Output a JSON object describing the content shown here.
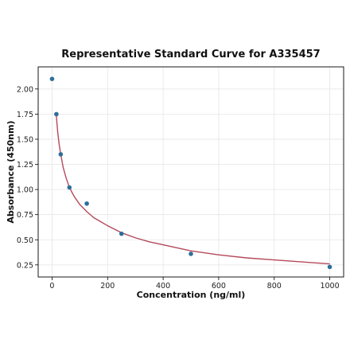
{
  "chart_data": {
    "type": "scatter",
    "title": "Representative Standard Curve for A335457",
    "xlabel": "Concentration (ng/ml)",
    "ylabel": "Absorbance (450nm)",
    "xlim": [
      -50,
      1050
    ],
    "ylim": [
      0.13,
      2.22
    ],
    "x_ticks": [
      0,
      200,
      400,
      600,
      800,
      1000
    ],
    "x_tick_labels": [
      "0",
      "200",
      "400",
      "600",
      "800",
      "1000"
    ],
    "y_ticks": [
      0.25,
      0.5,
      0.75,
      1.0,
      1.25,
      1.5,
      1.75,
      2.0
    ],
    "y_tick_labels": [
      "0.25",
      "0.50",
      "0.75",
      "1.00",
      "1.25",
      "1.50",
      "1.75",
      "2.00"
    ],
    "grid": true,
    "points": {
      "x": [
        0,
        15.6,
        31.25,
        62.5,
        125,
        250,
        500,
        1000
      ],
      "y": [
        2.1,
        1.75,
        1.35,
        1.02,
        0.86,
        0.56,
        0.36,
        0.23
      ]
    },
    "fit_curve": {
      "x": [
        15,
        20,
        25,
        30,
        40,
        50,
        60,
        70,
        80,
        100,
        125,
        150,
        175,
        200,
        250,
        300,
        350,
        400,
        500,
        600,
        700,
        800,
        900,
        1000
      ],
      "y": [
        1.75,
        1.58,
        1.46,
        1.37,
        1.22,
        1.12,
        1.04,
        0.98,
        0.93,
        0.85,
        0.78,
        0.72,
        0.68,
        0.64,
        0.57,
        0.52,
        0.48,
        0.45,
        0.39,
        0.35,
        0.32,
        0.3,
        0.28,
        0.26
      ]
    },
    "colors": {
      "points": "#2e6f9a",
      "curve": "#b5495b",
      "grid": "#e6e6e6",
      "frame": "#000000"
    }
  }
}
